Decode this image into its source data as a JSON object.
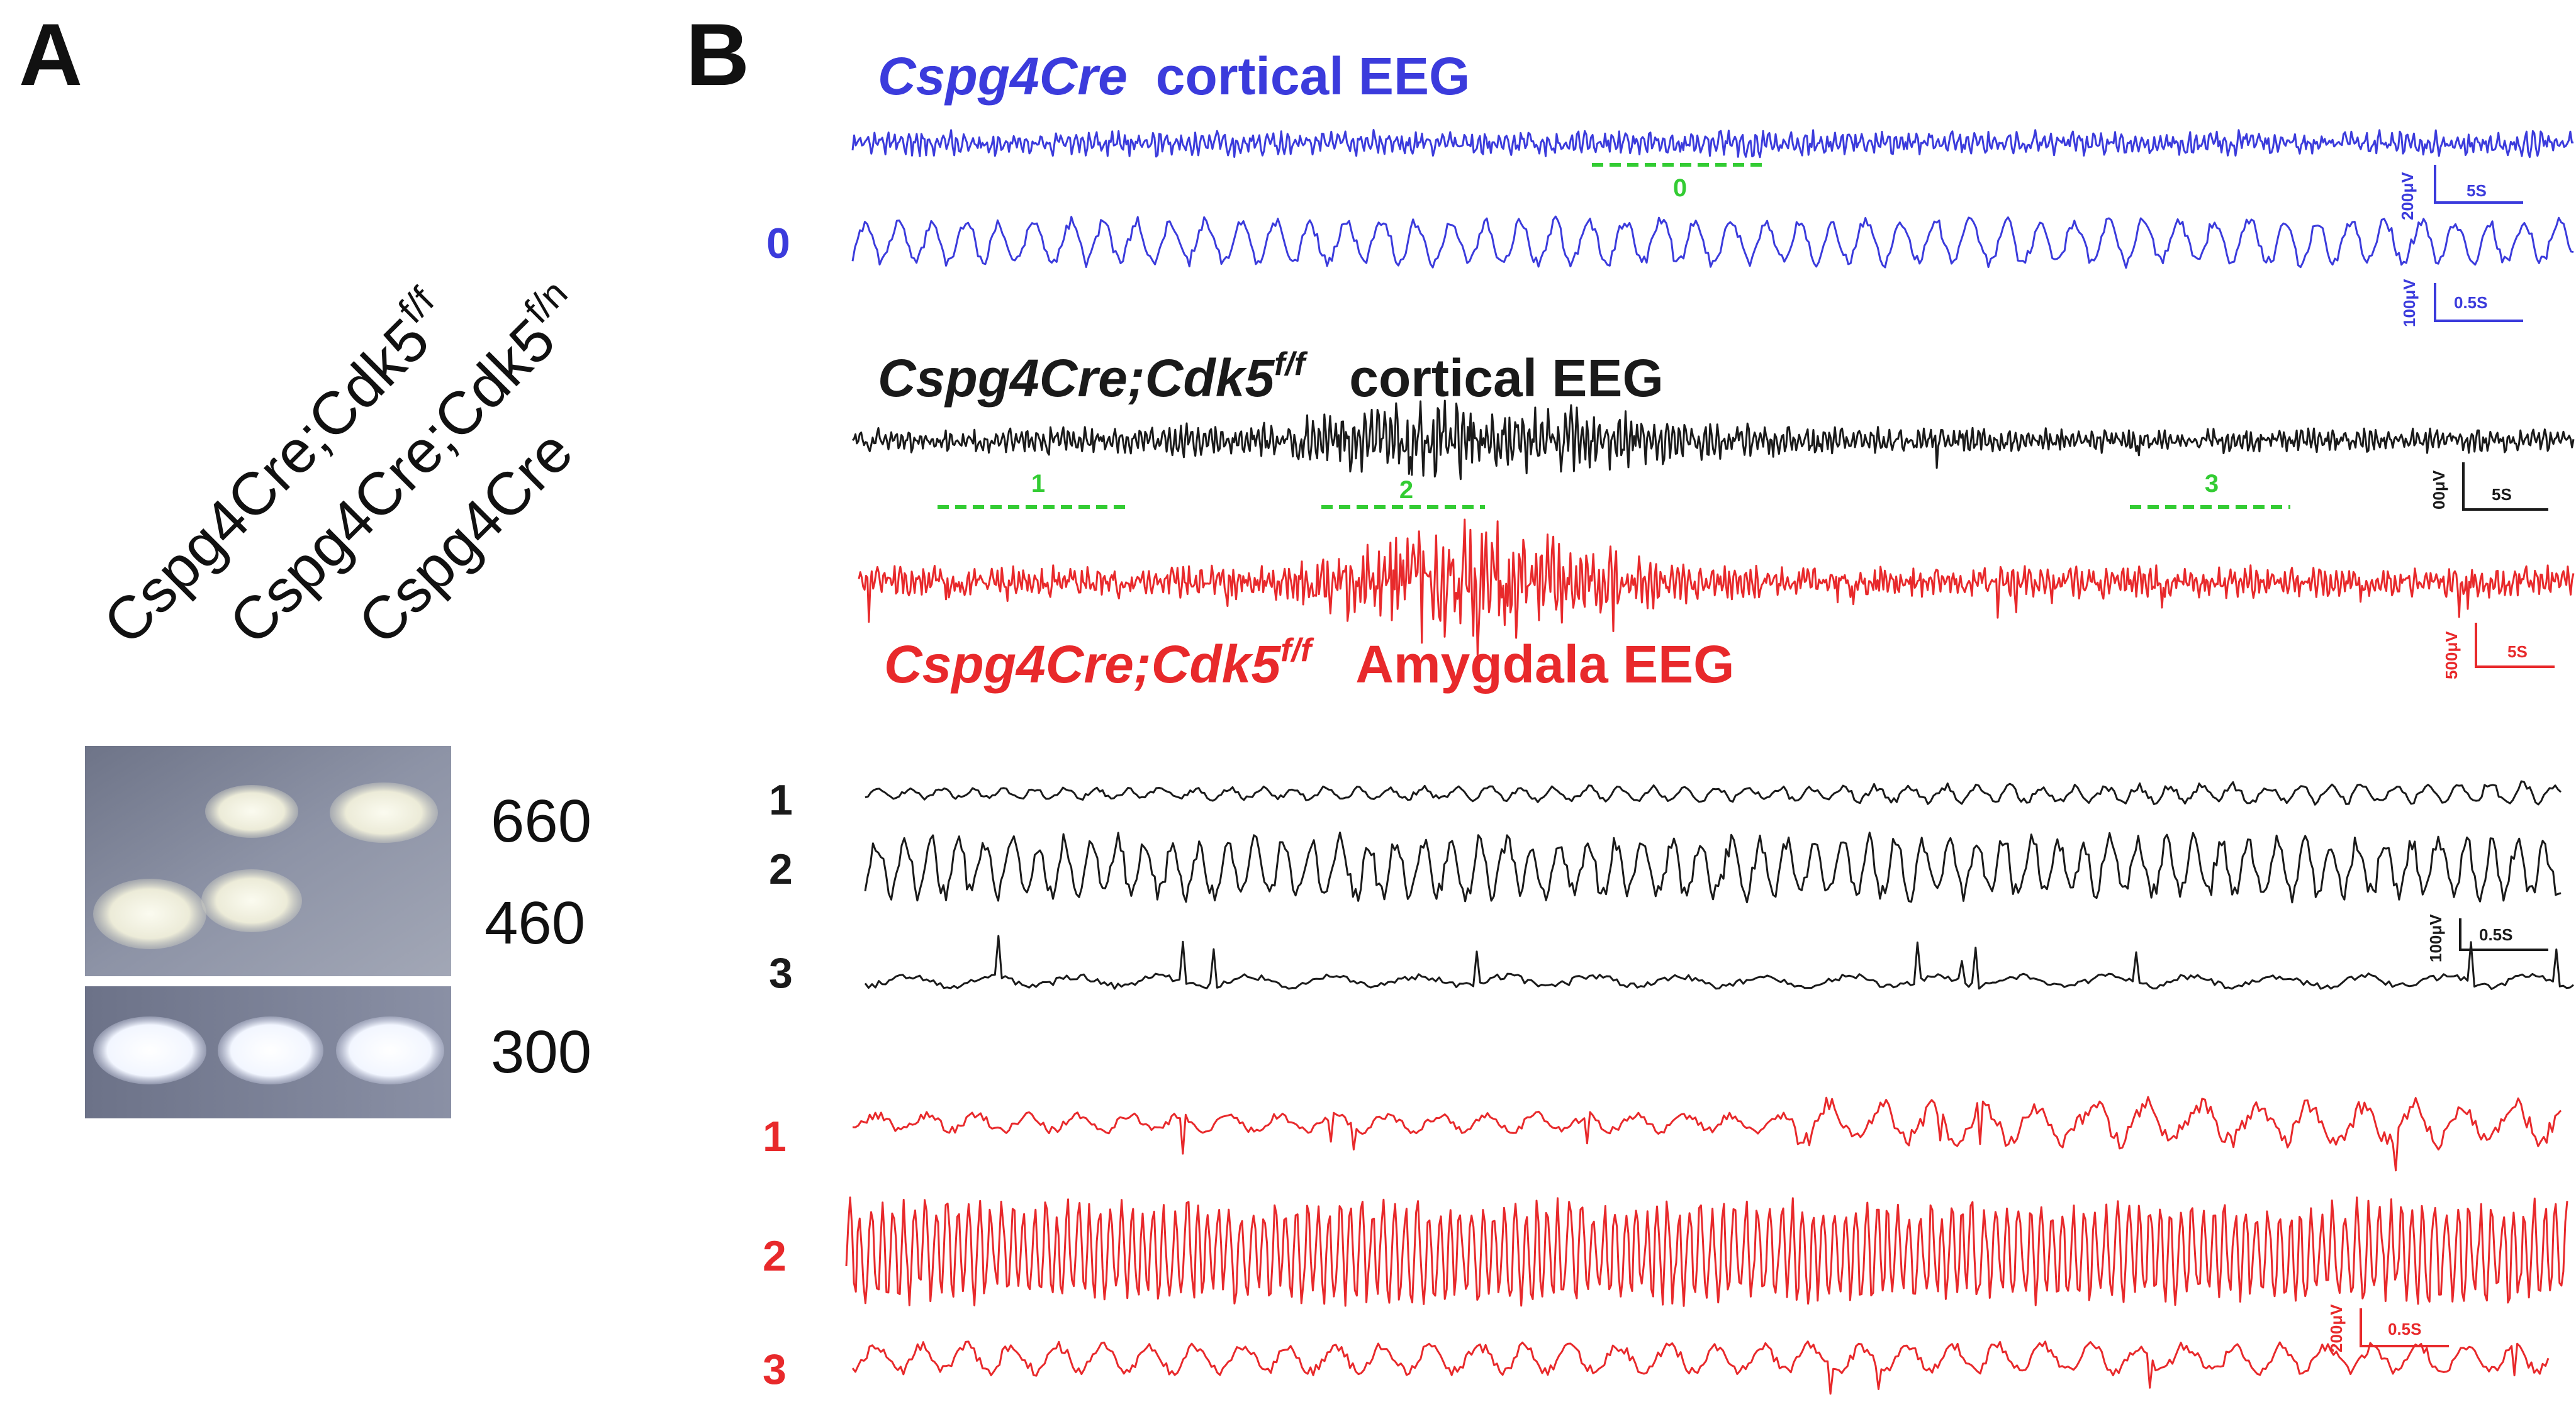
{
  "panel_a": {
    "letter": "A",
    "lanes": [
      {
        "base": "Cspg4Cre;Cdk5",
        "sup": "f/f"
      },
      {
        "base": "Cspg4Cre;Cdk5",
        "sup": "f/n"
      },
      {
        "base": "Cspg4Cre",
        "sup": ""
      }
    ],
    "band_sizes": [
      "660",
      "460",
      "300"
    ]
  },
  "panel_b": {
    "letter": "B",
    "colors": {
      "blue": "#3b3bdc",
      "black": "#1a1a1a",
      "red": "#e8292b",
      "green": "#33cc33"
    },
    "control_title": {
      "genotype": "Cspg4Cre",
      "rest": "cortical EEG"
    },
    "mutant_cortical_title": {
      "genotype": "Cspg4Cre;Cdk5",
      "sup": "f/f",
      "rest": "cortical EEG"
    },
    "mutant_amygdala_title": {
      "genotype": "Cspg4Cre;Cdk5",
      "sup": "f/f",
      "rest": "Amygdala EEG"
    },
    "control_expanded_label": "0",
    "segments": [
      "0",
      "1",
      "2",
      "3"
    ],
    "expanded_labels_black": [
      "1",
      "2",
      "3"
    ],
    "expanded_labels_red": [
      "1",
      "2",
      "3"
    ],
    "scale_bars": [
      {
        "amp": "200μV",
        "time": "5S"
      },
      {
        "amp": "100μV",
        "time": "0.5S"
      },
      {
        "amp": "00μV",
        "time": "5S"
      },
      {
        "amp": "500μV",
        "time": "5S"
      },
      {
        "amp": "100μV",
        "time": "0.5S"
      },
      {
        "amp": "200μV",
        "time": "0.5S"
      }
    ]
  }
}
